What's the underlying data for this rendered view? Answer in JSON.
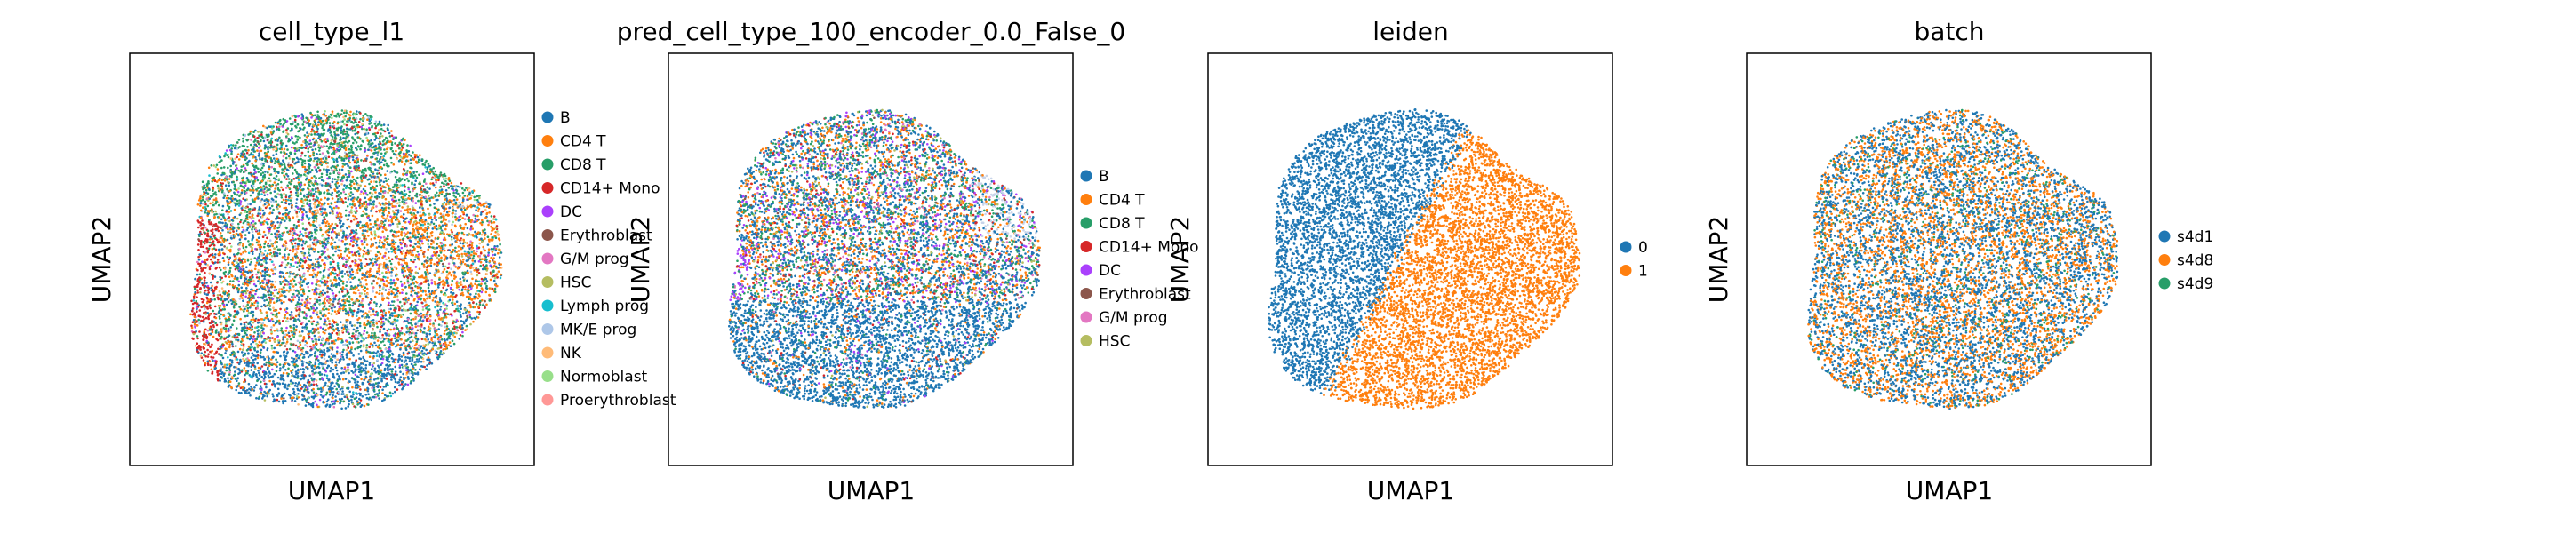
{
  "chart_data": [
    {
      "type": "scatter",
      "title": "cell_type_l1",
      "xlabel": "UMAP1",
      "ylabel": "UMAP2",
      "legend_position": "right",
      "series": [
        {
          "name": "B",
          "color": "#1f77b4"
        },
        {
          "name": "CD4 T",
          "color": "#ff7f0e"
        },
        {
          "name": "CD8 T",
          "color": "#279e68"
        },
        {
          "name": "CD14+ Mono",
          "color": "#d62728"
        },
        {
          "name": "DC",
          "color": "#aa40fc"
        },
        {
          "name": "Erythroblast",
          "color": "#8c564b"
        },
        {
          "name": "G/M prog",
          "color": "#e377c2"
        },
        {
          "name": "HSC",
          "color": "#b5bd61"
        },
        {
          "name": "Lymph prog",
          "color": "#17becf"
        },
        {
          "name": "MK/E prog",
          "color": "#aec7e8"
        },
        {
          "name": "NK",
          "color": "#ffbb78"
        },
        {
          "name": "Normoblast",
          "color": "#98df8a"
        },
        {
          "name": "Proerythroblast",
          "color": "#ff9896"
        }
      ]
    },
    {
      "type": "scatter",
      "title": "pred_cell_type_100_encoder_0.0_False_0",
      "xlabel": "UMAP1",
      "ylabel": "UMAP2",
      "legend_position": "right",
      "series": [
        {
          "name": "B",
          "color": "#1f77b4"
        },
        {
          "name": "CD4 T",
          "color": "#ff7f0e"
        },
        {
          "name": "CD8 T",
          "color": "#279e68"
        },
        {
          "name": "CD14+ Mono",
          "color": "#d62728"
        },
        {
          "name": "DC",
          "color": "#aa40fc"
        },
        {
          "name": "Erythroblast",
          "color": "#8c564b"
        },
        {
          "name": "G/M prog",
          "color": "#e377c2"
        },
        {
          "name": "HSC",
          "color": "#b5bd61"
        }
      ]
    },
    {
      "type": "scatter",
      "title": "leiden",
      "xlabel": "UMAP1",
      "ylabel": "UMAP2",
      "legend_position": "right",
      "series": [
        {
          "name": "0",
          "color": "#1f77b4"
        },
        {
          "name": "1",
          "color": "#ff7f0e"
        }
      ]
    },
    {
      "type": "scatter",
      "title": "batch",
      "xlabel": "UMAP1",
      "ylabel": "UMAP2",
      "legend_position": "right",
      "series": [
        {
          "name": "s4d1",
          "color": "#1f77b4"
        },
        {
          "name": "s4d8",
          "color": "#ff7f0e"
        },
        {
          "name": "s4d9",
          "color": "#279e68"
        }
      ]
    }
  ]
}
